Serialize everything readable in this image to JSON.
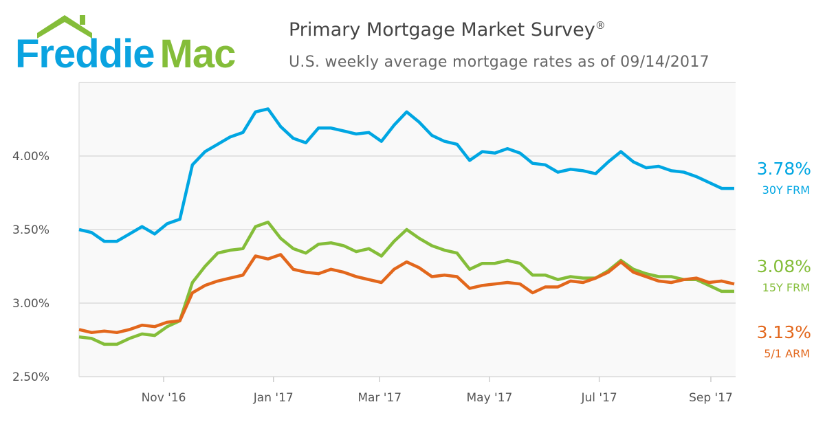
{
  "logo": {
    "text_left": "Freddie",
    "text_right": "Mac",
    "color_left": "#0aa3e0",
    "color_right": "#84bd39"
  },
  "header": {
    "title": "Primary Mortgage Market Survey",
    "title_mark": "®",
    "subtitle": "U.S. weekly average mortgage rates as of 09/14/2017"
  },
  "chart_data": {
    "type": "line",
    "title": "Primary Mortgage Market Survey",
    "subtitle": "U.S. weekly average mortgage rates as of 09/14/2017",
    "xlabel": "",
    "ylabel": "",
    "x_start": "2016-09-15",
    "x_end": "2017-09-14",
    "x_step": "weekly",
    "ylim": [
      2.5,
      4.5
    ],
    "y_ticks": [
      2.5,
      3.0,
      3.5,
      4.0
    ],
    "y_tick_labels": [
      "2.50%",
      "3.00%",
      "3.50%",
      "4.00%"
    ],
    "x_ticks": [
      {
        "label": "Nov '16",
        "date": "2016-11-01"
      },
      {
        "label": "Jan '17",
        "date": "2017-01-01"
      },
      {
        "label": "Mar '17",
        "date": "2017-03-01"
      },
      {
        "label": "May '17",
        "date": "2017-05-01"
      },
      {
        "label": "Jul '17",
        "date": "2017-07-01"
      },
      {
        "label": "Sep '17",
        "date": "2017-09-01"
      }
    ],
    "grid": true,
    "series": [
      {
        "name": "30Y FRM",
        "color": "#00a6e2",
        "last_label": "3.78%",
        "values": [
          3.5,
          3.48,
          3.42,
          3.42,
          3.47,
          3.52,
          3.47,
          3.54,
          3.57,
          3.94,
          4.03,
          4.08,
          4.13,
          4.16,
          4.3,
          4.32,
          4.2,
          4.12,
          4.09,
          4.19,
          4.19,
          4.17,
          4.15,
          4.16,
          4.1,
          4.21,
          4.3,
          4.23,
          4.14,
          4.1,
          4.08,
          3.97,
          4.03,
          4.02,
          4.05,
          4.02,
          3.95,
          3.94,
          3.89,
          3.91,
          3.9,
          3.88,
          3.96,
          4.03,
          3.96,
          3.92,
          3.93,
          3.9,
          3.89,
          3.86,
          3.82,
          3.78,
          3.78
        ]
      },
      {
        "name": "15Y FRM",
        "color": "#84bd39",
        "last_label": "3.08%",
        "values": [
          2.77,
          2.76,
          2.72,
          2.72,
          2.76,
          2.79,
          2.78,
          2.84,
          2.88,
          3.14,
          3.25,
          3.34,
          3.36,
          3.37,
          3.52,
          3.55,
          3.44,
          3.37,
          3.34,
          3.4,
          3.41,
          3.39,
          3.35,
          3.37,
          3.32,
          3.42,
          3.5,
          3.44,
          3.39,
          3.36,
          3.34,
          3.23,
          3.27,
          3.27,
          3.29,
          3.27,
          3.19,
          3.19,
          3.16,
          3.18,
          3.17,
          3.17,
          3.22,
          3.29,
          3.23,
          3.2,
          3.18,
          3.18,
          3.16,
          3.16,
          3.12,
          3.08,
          3.08
        ]
      },
      {
        "name": "5/1 ARM",
        "color": "#e2671c",
        "last_label": "3.13%",
        "values": [
          2.82,
          2.8,
          2.81,
          2.8,
          2.82,
          2.85,
          2.84,
          2.87,
          2.88,
          3.07,
          3.12,
          3.15,
          3.17,
          3.19,
          3.32,
          3.3,
          3.33,
          3.23,
          3.21,
          3.2,
          3.23,
          3.21,
          3.18,
          3.16,
          3.14,
          3.23,
          3.28,
          3.24,
          3.18,
          3.19,
          3.18,
          3.1,
          3.12,
          3.13,
          3.14,
          3.13,
          3.07,
          3.11,
          3.11,
          3.15,
          3.14,
          3.17,
          3.21,
          3.28,
          3.21,
          3.18,
          3.15,
          3.14,
          3.16,
          3.17,
          3.14,
          3.15,
          3.13
        ]
      }
    ]
  }
}
